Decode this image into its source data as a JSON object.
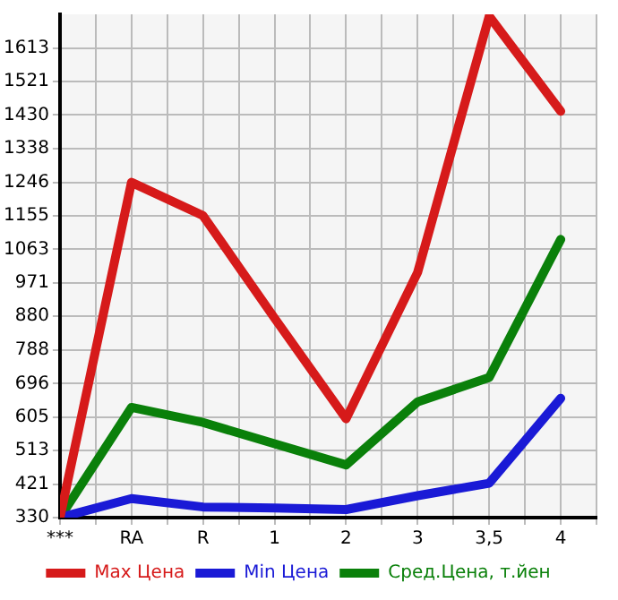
{
  "chart_data": {
    "type": "line",
    "categories": [
      "***",
      "RA",
      "R",
      "1",
      "2",
      "3",
      "3,5",
      "4"
    ],
    "series": [
      {
        "name": "Max Цена",
        "color": "#d61a1a",
        "values": [
          330,
          1246,
          1155,
          875,
          600,
          1000,
          1700,
          1440
        ]
      },
      {
        "name": "Min Цена",
        "color": "#1a1ad6",
        "values": [
          330,
          382,
          359,
          356,
          352,
          390,
          424,
          656
        ]
      },
      {
        "name": "Сред.Цена, т.йен",
        "color": "#0a800a",
        "values": [
          330,
          631,
          590,
          532,
          474,
          646,
          713,
          1090
        ]
      }
    ],
    "ylim": [
      330,
      1705
    ],
    "yticks": [
      330,
      421,
      513,
      605,
      696,
      788,
      880,
      971,
      1063,
      1155,
      1246,
      1338,
      1430,
      1521,
      1613
    ],
    "grid": true,
    "legend": "bottom",
    "marker": "none",
    "line_style": "solid"
  }
}
